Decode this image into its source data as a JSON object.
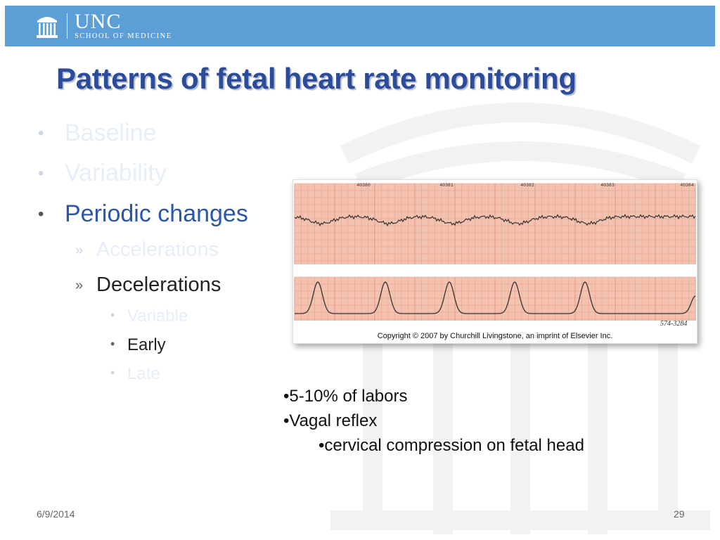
{
  "header": {
    "logo_name": "UNC",
    "logo_subtitle": "SCHOOL OF MEDICINE",
    "color": "#5b9fd6"
  },
  "title": "Patterns of fetal heart rate monitoring",
  "outline": [
    {
      "text": "Baseline",
      "level": 1,
      "state": "faded"
    },
    {
      "text": "Variability",
      "level": 1,
      "state": "faded"
    },
    {
      "text": "Periodic changes",
      "level": 1,
      "state": "active"
    },
    {
      "text": "Accelerations",
      "level": 2,
      "state": "faded"
    },
    {
      "text": "Decelerations",
      "level": 2,
      "state": "active"
    },
    {
      "text": "Variable",
      "level": 3,
      "state": "faded"
    },
    {
      "text": "Early",
      "level": 3,
      "state": "active"
    },
    {
      "text": "Late",
      "level": 3,
      "state": "faded"
    }
  ],
  "figure": {
    "strip_numbers": [
      "40380",
      "40381",
      "40382",
      "40383",
      "40384"
    ],
    "handwritten_mark": "574-3284",
    "caption": "Copyright © 2007 by Churchill Livingstone, an imprint of Elsevier Inc."
  },
  "notes": [
    "•5-10% of labors",
    "•Vagal reflex",
    "•cervical compression on fetal head"
  ],
  "footer": {
    "date": "6/9/2014",
    "page": "29"
  },
  "colors": {
    "title": "#2b4c9a",
    "active_bullet": "#2c56a8",
    "faded_bullet": "#e8eef8",
    "paper": "#f4c2b0",
    "grid": "#e79880"
  }
}
